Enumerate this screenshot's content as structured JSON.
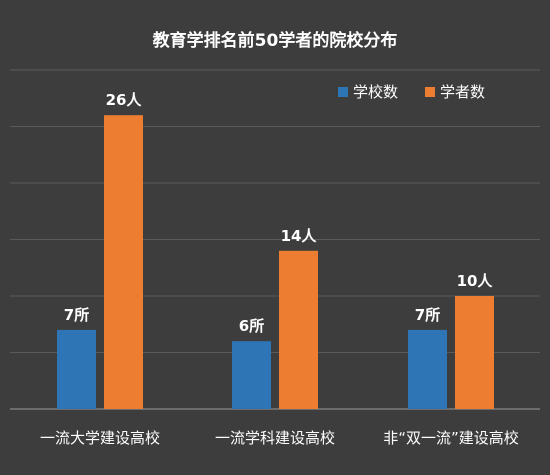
{
  "chart_data": {
    "type": "bar",
    "title": "教育学排名前50学者的院校分布",
    "categories": [
      "一流大学建设高校",
      "一流学科建设高校",
      "非“双一流”建设高校"
    ],
    "series": [
      {
        "name": "学校数",
        "color": "#2e75b6",
        "values": [
          7,
          6,
          7
        ],
        "labels": [
          "7所",
          "6所",
          "7所"
        ]
      },
      {
        "name": "学者数",
        "color": "#ed7d31",
        "values": [
          26,
          14,
          10
        ],
        "labels": [
          "26人",
          "14人",
          "10人"
        ]
      }
    ],
    "ylim": [
      0,
      30
    ],
    "grid": true,
    "legend": "top-right"
  }
}
